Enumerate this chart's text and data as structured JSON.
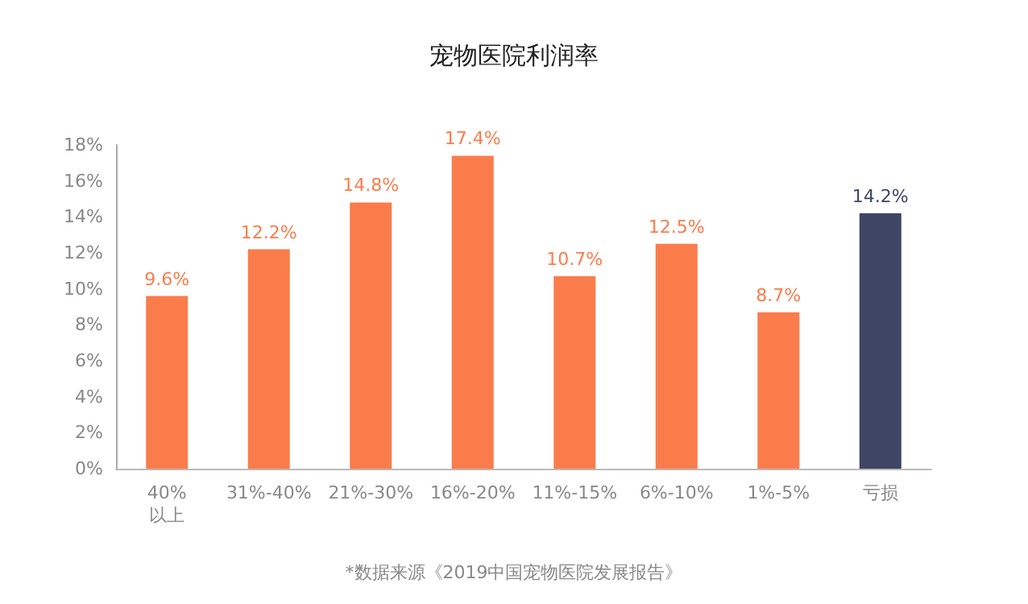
{
  "chart_data": {
    "type": "bar",
    "title": "宠物医院利润率",
    "categories": [
      "40%\n以上",
      "31%-40%",
      "21%-30%",
      "16%-20%",
      "11%-15%",
      "6%-10%",
      "1%-5%",
      "亏损"
    ],
    "values": [
      9.6,
      12.2,
      14.8,
      17.4,
      10.7,
      12.5,
      8.7,
      14.2
    ],
    "value_labels": [
      "9.6%",
      "12.2%",
      "14.8%",
      "17.4%",
      "10.7%",
      "12.5%",
      "8.7%",
      "14.2%"
    ],
    "colors": [
      "#fb7c4b",
      "#fb7c4b",
      "#fb7c4b",
      "#fb7c4b",
      "#fb7c4b",
      "#fb7c4b",
      "#fb7c4b",
      "#3f4565"
    ],
    "ylim": [
      0,
      18
    ],
    "yticks": [
      {
        "value": 0,
        "label": "0%"
      },
      {
        "value": 2,
        "label": "2%"
      },
      {
        "value": 4,
        "label": "4%"
      },
      {
        "value": 6,
        "label": "6%"
      },
      {
        "value": 8,
        "label": "8%"
      },
      {
        "value": 10,
        "label": "10%"
      },
      {
        "value": 12,
        "label": "12%"
      },
      {
        "value": 14,
        "label": "14%"
      },
      {
        "value": 16,
        "label": "16%"
      },
      {
        "value": 18,
        "label": "18%"
      }
    ],
    "grid": false,
    "annotations": [
      "*数据来源《2019中国宠物医院发展报告》"
    ]
  }
}
